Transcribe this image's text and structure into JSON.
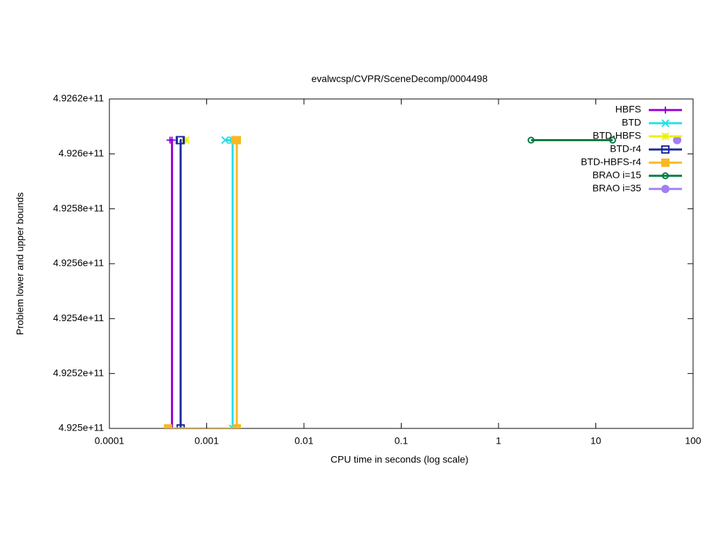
{
  "chart_data": {
    "type": "line",
    "title": "evalwcsp/CVPR/SceneDecomp/0004498",
    "x_label": "CPU time in seconds (log scale)",
    "y_label": "Problem lower and upper bounds",
    "xscale": "log",
    "xlim": [
      0.0001,
      100
    ],
    "xticks": [
      0.0001,
      0.001,
      0.01,
      0.1,
      1,
      10,
      100
    ],
    "ylim": [
      492500000000,
      492620000000
    ],
    "yticks": [
      {
        "value": 492500000000,
        "label": "4.925e+11"
      },
      {
        "value": 492520000000,
        "label": "4.9252e+11"
      },
      {
        "value": 492540000000,
        "label": "4.9254e+11"
      },
      {
        "value": 492560000000,
        "label": "4.9256e+11"
      },
      {
        "value": 492580000000,
        "label": "4.9258e+11"
      },
      {
        "value": 492600000000,
        "label": "4.926e+11"
      },
      {
        "value": 492620000000,
        "label": "4.9262e+11"
      }
    ],
    "legend": "top-right",
    "series": [
      {
        "name": "HBFS",
        "color": "#9400d3",
        "marker": "plus",
        "x": [
          0.00042,
          0.00044,
          0.00044
        ],
        "values": [
          492605000000,
          492605000000,
          492500000000
        ]
      },
      {
        "name": "BTD",
        "color": "#22e0e8",
        "marker": "cross",
        "x": [
          0.00155,
          0.00185,
          0.00185
        ],
        "values": [
          492605000000,
          492605000000,
          492500000000
        ]
      },
      {
        "name": "BTD-HBFS",
        "color": "#f0f000",
        "marker": "star",
        "x": [
          0.00061
        ],
        "values": [
          492605000000
        ]
      },
      {
        "name": "BTD-r4",
        "color": "#1a2a9a",
        "marker": "square",
        "x": [
          0.00053,
          0.00054,
          0.00054
        ],
        "values": [
          492605000000,
          492605000000,
          492500000000
        ]
      },
      {
        "name": "BTD-HBFS-r4",
        "color": "#f8b820",
        "marker": "square-filled",
        "x": [
          0.00197,
          0.00204,
          0.00204,
          0.0004
        ],
        "values": [
          492605000000,
          492605000000,
          492500000000,
          492500000000
        ]
      },
      {
        "name": "BRAO i=15",
        "color": "#007a40",
        "marker": "circle",
        "x": [
          2.16,
          14.9
        ],
        "values": [
          492605000000,
          492605000000
        ]
      },
      {
        "name": "BRAO i=35",
        "color": "#a080f0",
        "marker": "circle-filled",
        "x": [
          68.6
        ],
        "values": [
          492605000000
        ]
      }
    ]
  }
}
